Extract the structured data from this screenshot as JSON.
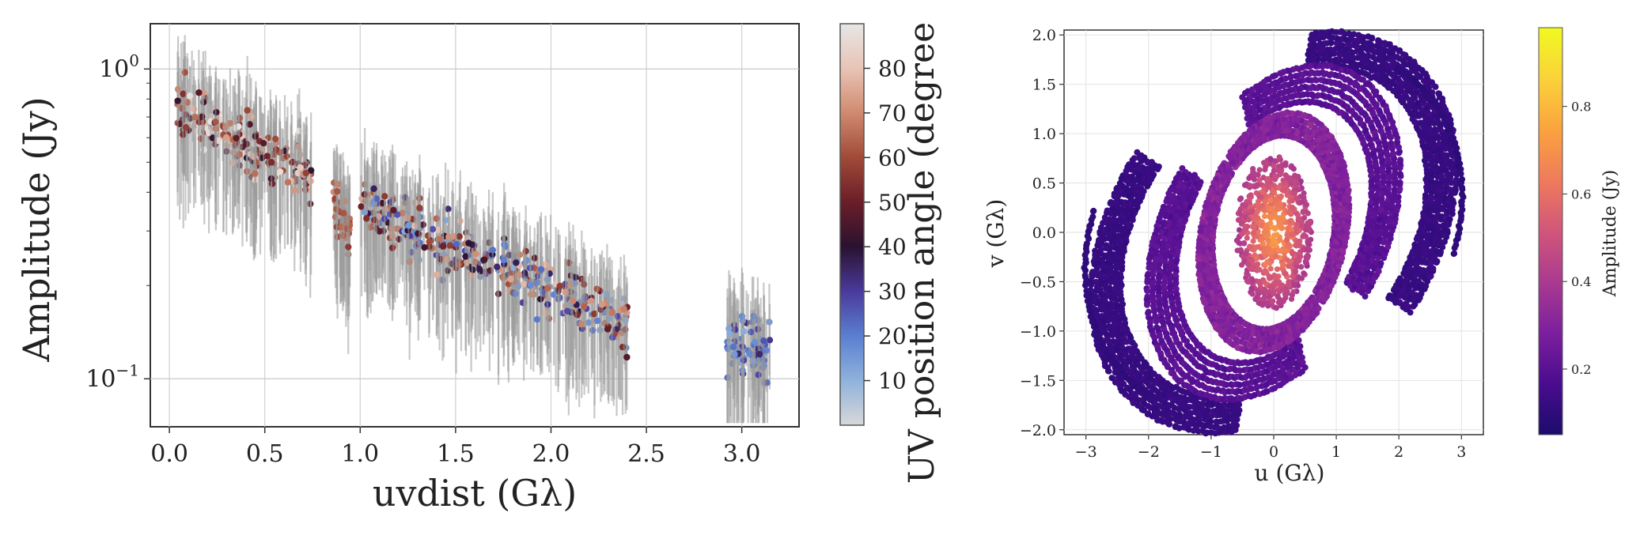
{
  "chart_data": [
    {
      "type": "scatter",
      "title": "",
      "xlabel": "uvdist (Gλ)",
      "ylabel": "Amplitude (Jy)",
      "yscale": "log",
      "xlim": [
        -0.1,
        3.3
      ],
      "ylim": [
        0.07,
        1.4
      ],
      "xticks": [
        "0.0",
        "0.5",
        "1.0",
        "1.5",
        "2.0",
        "2.5",
        "3.0"
      ],
      "xtick_values": [
        0,
        0.5,
        1.0,
        1.5,
        2.0,
        2.5,
        3.0
      ],
      "yticks": [
        {
          "value": 1.0,
          "base": "10",
          "exp": "0"
        },
        {
          "value": 0.1,
          "base": "10",
          "exp": "−1"
        }
      ],
      "grid": true,
      "colorbar": {
        "label": "UV position angle (degree",
        "range": [
          0,
          90
        ],
        "ticks": [
          "10",
          "20",
          "30",
          "40",
          "50",
          "60",
          "70",
          "80"
        ],
        "tick_values": [
          10,
          20,
          30,
          40,
          50,
          60,
          70,
          80
        ],
        "colormap": [
          "#d8d8d8",
          "#8fb2dc",
          "#5a7fd0",
          "#4a3a9c",
          "#2a1230",
          "#6a1e28",
          "#a04a38",
          "#d08a70",
          "#e8c4b6",
          "#e6e6e6"
        ]
      },
      "clusters": [
        {
          "x": [
            0.04,
            0.75
          ],
          "amp": [
            0.75,
            0.45
          ],
          "angles": [
            40,
            90
          ]
        },
        {
          "x": [
            0.86,
            0.95
          ],
          "amp": [
            0.37,
            0.3
          ],
          "angles": [
            55,
            70
          ]
        },
        {
          "x": [
            1.0,
            2.4
          ],
          "amp": [
            0.36,
            0.15
          ],
          "angles": [
            10,
            80
          ]
        },
        {
          "x": [
            2.92,
            3.15
          ],
          "amp": [
            0.13,
            0.12
          ],
          "angles": [
            10,
            35
          ]
        }
      ]
    },
    {
      "type": "scatter",
      "title": "",
      "xlabel": "u (Gλ)",
      "ylabel": "v (Gλ)",
      "xlim": [
        -3.35,
        3.35
      ],
      "ylim": [
        -2.05,
        2.05
      ],
      "xticks": [
        "−3",
        "−2",
        "−1",
        "0",
        "1",
        "2",
        "3"
      ],
      "xtick_values": [
        -3,
        -2,
        -1,
        0,
        1,
        2,
        3
      ],
      "yticks": [
        "−2.0",
        "−1.5",
        "−1.0",
        "−0.5",
        "0.0",
        "0.5",
        "1.0",
        "1.5",
        "2.0"
      ],
      "ytick_values": [
        -2.0,
        -1.5,
        -1.0,
        -0.5,
        0.0,
        0.5,
        1.0,
        1.5,
        2.0
      ],
      "grid": true,
      "colorbar": {
        "label": "Amplitude (Jy)",
        "range": [
          0.05,
          0.98
        ],
        "ticks": [
          "0.2",
          "0.4",
          "0.6",
          "0.8"
        ],
        "tick_values": [
          0.2,
          0.4,
          0.6,
          0.8
        ],
        "colormap": [
          "#1b0c6b",
          "#4a0c8f",
          "#7c1f9e",
          "#aa3a8f",
          "#d1567a",
          "#ee7b5c",
          "#fba33e",
          "#fbd23a",
          "#f0f921"
        ]
      },
      "tracks": [
        {
          "center_u": 0.0,
          "center_v": 0.0,
          "ru": 0.75,
          "rv": 0.75,
          "amp": 0.6
        },
        {
          "center_u": 0.0,
          "center_v": 0.0,
          "ru": 1.3,
          "rv": 1.05,
          "amp": 0.32
        },
        {
          "center_u": 0.0,
          "center_v": 0.0,
          "ru": 2.3,
          "rv": 1.6,
          "amp": 0.18
        },
        {
          "center_u": 0.0,
          "center_v": 0.0,
          "ru": 3.0,
          "rv": 1.85,
          "amp": 0.1
        }
      ]
    }
  ]
}
